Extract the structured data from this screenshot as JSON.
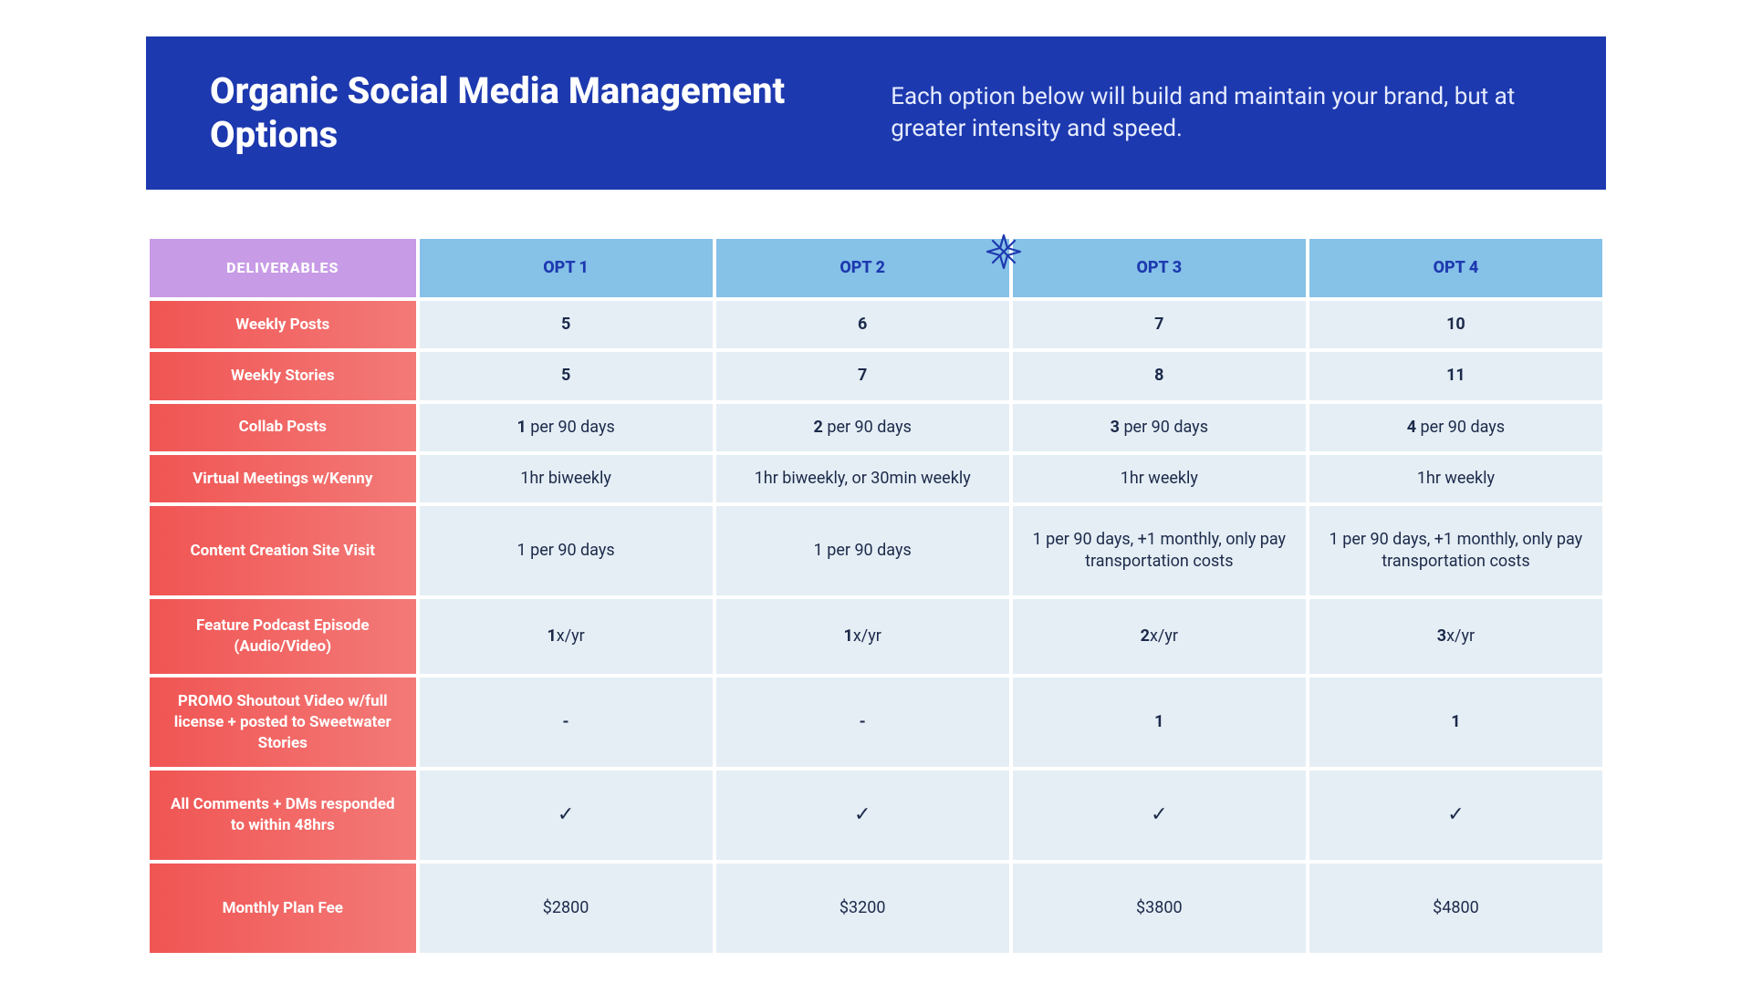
{
  "banner": {
    "title": "Organic Social Media Management Options",
    "subtitle": "Each option below will build and maintain your brand, but at greater intensity and speed."
  },
  "colors": {
    "banner_bg": "#1d39af",
    "banner_title": "#ffffff",
    "banner_sub": "#e6ecff",
    "deliv_head_bg": "#c89be6",
    "opt_head_bg": "#86c1e8",
    "opt_head_text": "#1d39af",
    "row_label_grad_start": "#f05553",
    "row_label_grad_end": "#f37a78",
    "cell_bg": "#e5eef5",
    "cell_text": "#1c2a4a",
    "page_bg": "#ffffff",
    "star": "#1d39af"
  },
  "typography": {
    "title_fontsize": 40,
    "title_weight": 800,
    "subtitle_fontsize": 26,
    "cell_fontsize": 18,
    "rowlabel_fontsize": 17,
    "header_fontsize": 18
  },
  "table": {
    "column_widths_pct": [
      18.5,
      20.4,
      20.4,
      20.4,
      20.4
    ],
    "headers": {
      "deliverables": "DELIVERABLES",
      "opts": [
        "OPT 1",
        "OPT 2",
        "OPT 3",
        "OPT 4"
      ]
    },
    "rows": [
      {
        "label": "Weekly Posts",
        "height": "normal",
        "cells": [
          {
            "bold": "5",
            "rest": ""
          },
          {
            "bold": "6",
            "rest": ""
          },
          {
            "bold": "7",
            "rest": ""
          },
          {
            "bold": "10",
            "rest": ""
          }
        ]
      },
      {
        "label": "Weekly Stories",
        "height": "normal",
        "cells": [
          {
            "bold": "5",
            "rest": ""
          },
          {
            "bold": "7",
            "rest": ""
          },
          {
            "bold": "8",
            "rest": ""
          },
          {
            "bold": "11",
            "rest": ""
          }
        ]
      },
      {
        "label": "Collab Posts",
        "height": "normal",
        "cells": [
          {
            "bold": "1",
            "rest": " per 90 days"
          },
          {
            "bold": "2",
            "rest": " per 90 days"
          },
          {
            "bold": "3",
            "rest": " per 90 days"
          },
          {
            "bold": "4",
            "rest": " per 90 days"
          }
        ]
      },
      {
        "label": "Virtual Meetings w/Kenny",
        "height": "normal",
        "cells": [
          {
            "bold": "",
            "rest": "1hr biweekly"
          },
          {
            "bold": "",
            "rest": "1hr biweekly, or 30min weekly"
          },
          {
            "bold": "",
            "rest": "1hr weekly"
          },
          {
            "bold": "",
            "rest": "1hr weekly"
          }
        ]
      },
      {
        "label": "Content Creation Site Visit",
        "height": "tall",
        "cells": [
          {
            "bold": "",
            "rest": "1 per 90 days"
          },
          {
            "bold": "",
            "rest": "1 per 90 days"
          },
          {
            "bold": "",
            "rest": "1 per 90 days, +1 monthly, only pay transportation costs"
          },
          {
            "bold": "",
            "rest": "1 per 90 days, +1 monthly, only pay transportation costs"
          }
        ]
      },
      {
        "label": "Feature Podcast Episode (Audio/Video)",
        "height": "med",
        "cells": [
          {
            "bold": "1",
            "rest": "x/yr"
          },
          {
            "bold": "1",
            "rest": "x/yr"
          },
          {
            "bold": "2",
            "rest": "x/yr"
          },
          {
            "bold": "3",
            "rest": "x/yr"
          }
        ]
      },
      {
        "label": "PROMO Shoutout Video w/full license + posted to Sweetwater Stories",
        "height": "tall",
        "cells": [
          {
            "bold": "-",
            "rest": ""
          },
          {
            "bold": "-",
            "rest": ""
          },
          {
            "bold": "1",
            "rest": ""
          },
          {
            "bold": "1",
            "rest": ""
          }
        ]
      },
      {
        "label": "All Comments + DMs responded to within 48hrs",
        "height": "tall",
        "cells": [
          {
            "check": true
          },
          {
            "check": true
          },
          {
            "check": true
          },
          {
            "check": true
          }
        ]
      },
      {
        "label": "Monthly Plan Fee",
        "height": "tall",
        "cells": [
          {
            "bold": "",
            "rest": "$2800"
          },
          {
            "bold": "",
            "rest": "$3200"
          },
          {
            "bold": "",
            "rest": "$3800"
          },
          {
            "bold": "",
            "rest": "$4800"
          }
        ]
      }
    ]
  },
  "decor": {
    "star_icon": true
  },
  "checkmark_glyph": "✓"
}
